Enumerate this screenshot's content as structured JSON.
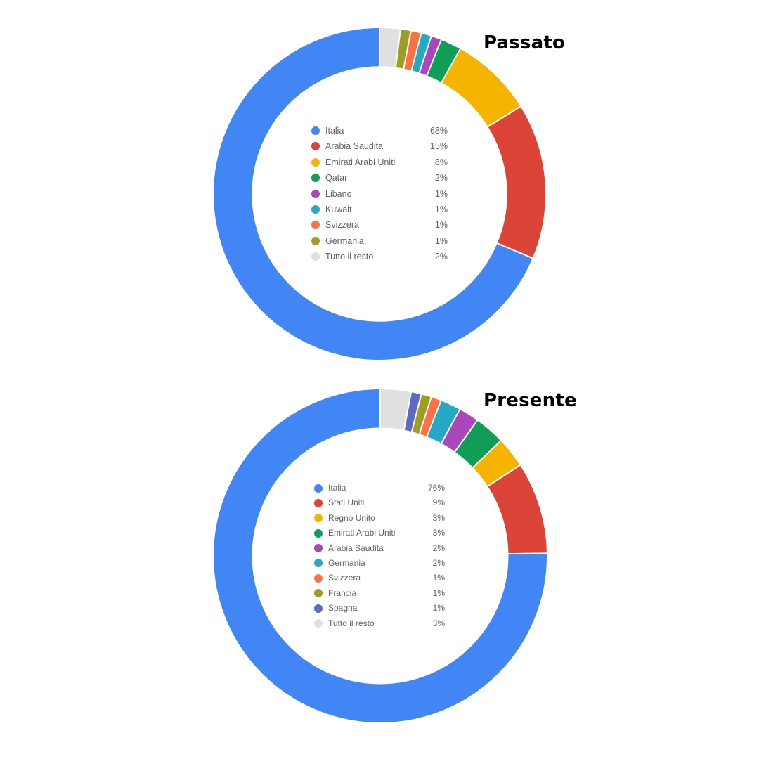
{
  "chart_data": [
    {
      "type": "pie",
      "title": "Passato",
      "categories": [
        "Italia",
        "Arabia Saudita",
        "Emirati Arabi Uniti",
        "Qatar",
        "Libano",
        "Kuwait",
        "Svizzera",
        "Germania",
        "Tutto il resto"
      ],
      "values": [
        68,
        15,
        8,
        2,
        1,
        1,
        1,
        1,
        2
      ],
      "value_labels": [
        "68%",
        "15%",
        "8%",
        "2%",
        "1%",
        "1%",
        "1%",
        "1%",
        "2%"
      ],
      "colors": [
        "#4285f4",
        "#db4437",
        "#f4b400",
        "#0f9d58",
        "#ab47bc",
        "#26a9c5",
        "#ff7043",
        "#9e9d24",
        "#e0e0e0"
      ],
      "donut": true,
      "legend": "center"
    },
    {
      "type": "pie",
      "title": "Presente",
      "categories": [
        "Italia",
        "Stati Uniti",
        "Regno Unito",
        "Emirati Arabi Uniti",
        "Arabia Saudita",
        "Germania",
        "Svizzera",
        "Francia",
        "Spagna",
        "Tutto il resto"
      ],
      "values": [
        76,
        9,
        3,
        3,
        2,
        2,
        1,
        1,
        1,
        3
      ],
      "value_labels": [
        "76%",
        "9%",
        "3%",
        "3%",
        "2%",
        "2%",
        "1%",
        "1%",
        "1%",
        "3%"
      ],
      "colors": [
        "#4285f4",
        "#db4437",
        "#f4b400",
        "#0f9d58",
        "#ab47bc",
        "#26a9c5",
        "#ff7043",
        "#9e9d24",
        "#5c6bc0",
        "#e0e0e0"
      ],
      "donut": true,
      "legend": "center"
    }
  ]
}
